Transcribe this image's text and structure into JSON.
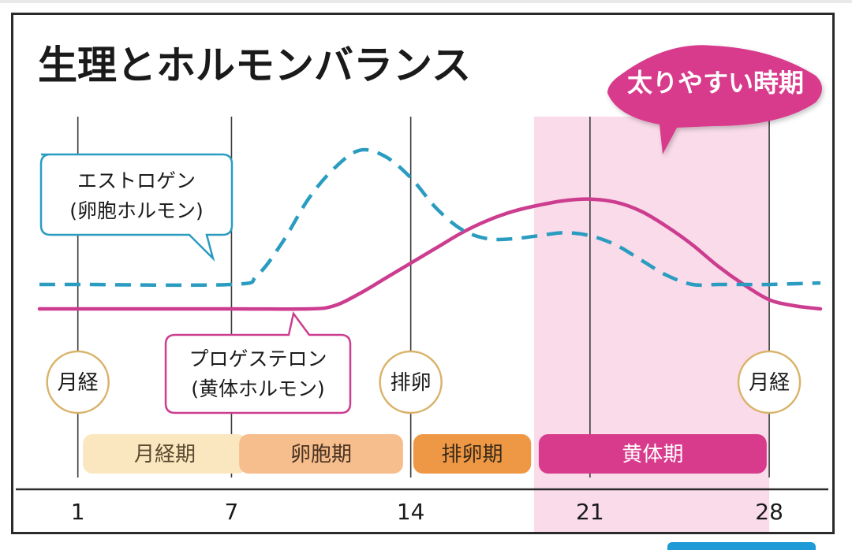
{
  "chart_data": {
    "type": "line",
    "title": "生理とホルモンバランス",
    "x_ticks": [
      1,
      7,
      14,
      21,
      28
    ],
    "xlim": [
      -0.5,
      30
    ],
    "grid_days": [
      1,
      7,
      14,
      21,
      28
    ],
    "callout": "太りやすい時期",
    "highlight_days": [
      19,
      28
    ],
    "series": [
      {
        "name": "エストロゲン (卵胞ホルモン)",
        "color": "#2a9cc0",
        "dash": true,
        "points": [
          [
            -0.5,
            1.4
          ],
          [
            1,
            1.4
          ],
          [
            7,
            1.4
          ],
          [
            8,
            1.7
          ],
          [
            9,
            2.8
          ],
          [
            10,
            4.2
          ],
          [
            11,
            5.2
          ],
          [
            12,
            5.8
          ],
          [
            13,
            5.6
          ],
          [
            14,
            4.9
          ],
          [
            15,
            3.9
          ],
          [
            16,
            3.2
          ],
          [
            17,
            2.9
          ],
          [
            18,
            2.9
          ],
          [
            19,
            3.0
          ],
          [
            20,
            3.1
          ],
          [
            21,
            3.0
          ],
          [
            22,
            2.7
          ],
          [
            23,
            2.2
          ],
          [
            24,
            1.7
          ],
          [
            25,
            1.4
          ],
          [
            26,
            1.4
          ],
          [
            27,
            1.4
          ],
          [
            28,
            1.4
          ],
          [
            30,
            1.45
          ]
        ]
      },
      {
        "name": "プロゲステロン (黄体ホルモン)",
        "color": "#cc3d8f",
        "dash": false,
        "points": [
          [
            -0.5,
            0.6
          ],
          [
            1,
            0.6
          ],
          [
            7,
            0.6
          ],
          [
            10,
            0.6
          ],
          [
            11,
            0.7
          ],
          [
            12,
            1.1
          ],
          [
            13,
            1.6
          ],
          [
            14,
            2.1
          ],
          [
            15,
            2.6
          ],
          [
            16,
            3.1
          ],
          [
            17,
            3.5
          ],
          [
            18,
            3.8
          ],
          [
            19,
            4.0
          ],
          [
            20,
            4.15
          ],
          [
            21,
            4.2
          ],
          [
            22,
            4.1
          ],
          [
            23,
            3.8
          ],
          [
            24,
            3.3
          ],
          [
            25,
            2.7
          ],
          [
            26,
            2.0
          ],
          [
            27,
            1.4
          ],
          [
            28,
            0.9
          ],
          [
            29,
            0.7
          ],
          [
            30,
            0.6
          ]
        ]
      }
    ],
    "markers": [
      {
        "day": 1,
        "label": "月経"
      },
      {
        "day": 14,
        "label": "排卵"
      },
      {
        "day": 28,
        "label": "月経"
      }
    ],
    "phases": [
      {
        "label": "月経期",
        "start": 1.2,
        "end": 7.6,
        "fill": "#fbe7bf",
        "text": "#5b4a30"
      },
      {
        "label": "卵胞期",
        "start": 7.3,
        "end": 13.7,
        "fill": "#f6bd8d",
        "text": "#4a3322"
      },
      {
        "label": "排卵期",
        "start": 14.1,
        "end": 18.7,
        "fill": "#ee9845",
        "text": "#3a2a18"
      },
      {
        "label": "黄体期",
        "start": 19.0,
        "end": 27.9,
        "fill": "#d83b8c",
        "text": "#ffffff"
      }
    ],
    "labels": {
      "estrogen": [
        "エストロゲン",
        "(卵胞ホルモン)"
      ],
      "progesterone": [
        "プロゲステロン",
        "(黄体ホルモン)"
      ]
    },
    "colors": {
      "estrogen": "#2a9cc0",
      "progesterone": "#cc3d8f",
      "highlight": "#f9dbe9",
      "marker_ring": "#d9b36a"
    }
  }
}
